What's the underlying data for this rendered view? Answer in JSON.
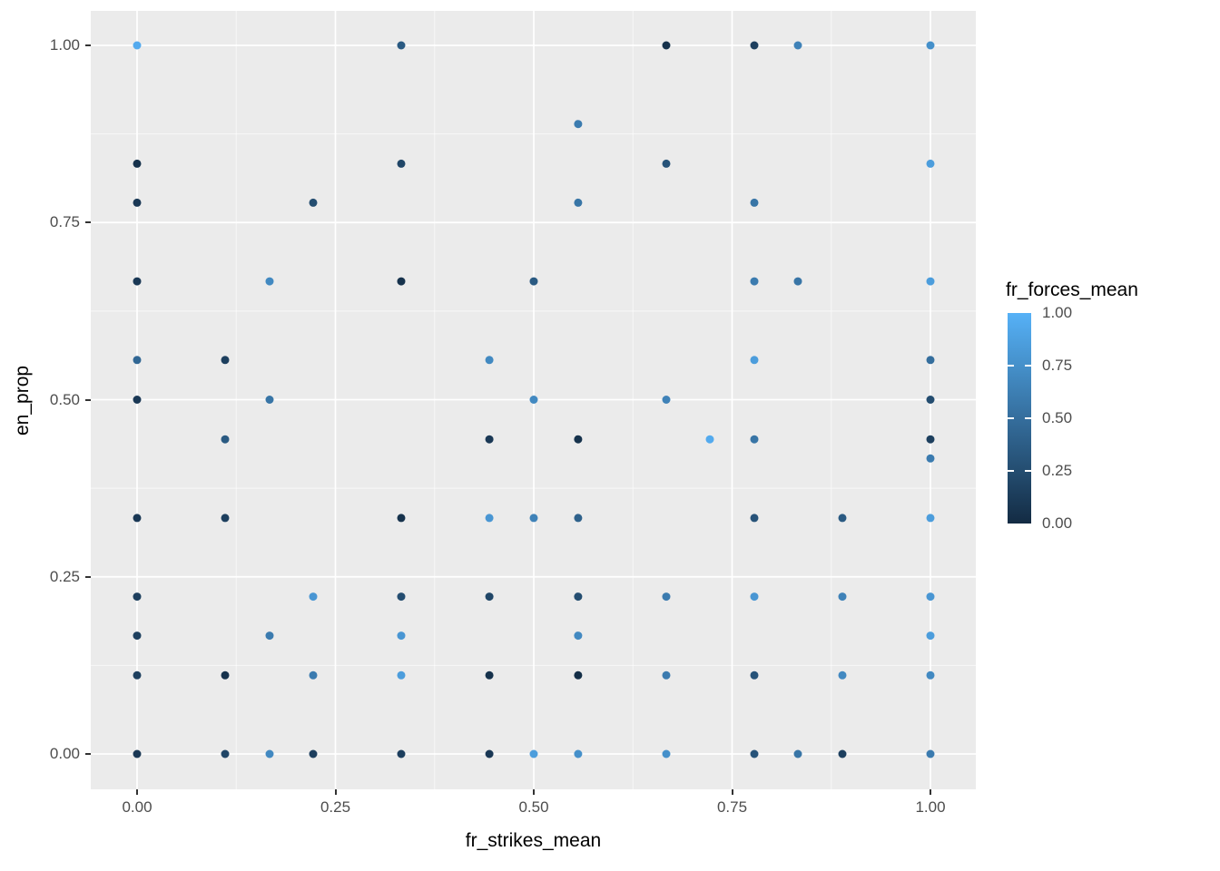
{
  "chart_data": {
    "type": "scatter",
    "title": "",
    "xlabel": "fr_strikes_mean",
    "ylabel": "en_prop",
    "xlim": [
      0,
      1
    ],
    "ylim": [
      0,
      1
    ],
    "grid": "on",
    "panel_bg": "#EBEBEB",
    "grid_color": "#FFFFFF",
    "tick_label_color": "#4D4D4D",
    "x_ticks": [
      "0.00",
      "0.25",
      "0.50",
      "0.75",
      "1.00"
    ],
    "x_tick_values": [
      0,
      0.25,
      0.5,
      0.75,
      1
    ],
    "y_ticks": [
      "1.00",
      "0.75",
      "0.50",
      "0.25",
      "0.00"
    ],
    "y_tick_values": [
      1,
      0.75,
      0.5,
      0.25,
      0
    ],
    "minor_tick_values": [
      0.125,
      0.375,
      0.625,
      0.875
    ],
    "legend": {
      "title": "fr_forces_mean",
      "position": "right",
      "type": "colorbar",
      "labels": [
        "1.00",
        "0.75",
        "0.50",
        "0.25",
        "0.00"
      ],
      "label_values": [
        1,
        0.75,
        0.5,
        0.25,
        0
      ],
      "color_low": "#132B43",
      "color_high": "#56B1F7"
    },
    "point_radius": 4.5,
    "points_format": [
      "fr_strikes_mean",
      "en_prop",
      "fr_forces_mean"
    ],
    "points": [
      [
        0,
        1,
        0.95
      ],
      [
        0.333,
        1,
        0.35
      ],
      [
        0.667,
        1,
        0.05
      ],
      [
        0.778,
        1,
        0.15
      ],
      [
        0.833,
        1,
        0.65
      ],
      [
        1,
        1,
        0.75
      ],
      [
        0.556,
        0.889,
        0.6
      ],
      [
        0,
        0.833,
        0.05
      ],
      [
        0.333,
        0.833,
        0.2
      ],
      [
        0.667,
        0.833,
        0.3
      ],
      [
        1,
        0.833,
        0.85
      ],
      [
        0,
        0.778,
        0.1
      ],
      [
        0.222,
        0.778,
        0.25
      ],
      [
        0.556,
        0.778,
        0.55
      ],
      [
        0.778,
        0.778,
        0.55
      ],
      [
        0,
        0.667,
        0.1
      ],
      [
        0.167,
        0.667,
        0.7
      ],
      [
        0.333,
        0.667,
        0.05
      ],
      [
        0.5,
        0.667,
        0.35
      ],
      [
        0.778,
        0.667,
        0.6
      ],
      [
        0.833,
        0.667,
        0.55
      ],
      [
        1,
        0.667,
        0.85
      ],
      [
        0,
        0.556,
        0.45
      ],
      [
        0.111,
        0.556,
        0.15
      ],
      [
        0.444,
        0.556,
        0.7
      ],
      [
        0.778,
        0.556,
        0.85
      ],
      [
        1,
        0.556,
        0.5
      ],
      [
        0,
        0.5,
        0.1
      ],
      [
        0.167,
        0.5,
        0.55
      ],
      [
        0.5,
        0.5,
        0.7
      ],
      [
        0.667,
        0.5,
        0.65
      ],
      [
        1,
        0.5,
        0.25
      ],
      [
        0.111,
        0.444,
        0.35
      ],
      [
        0.444,
        0.444,
        0.1
      ],
      [
        0.556,
        0.444,
        0.05
      ],
      [
        0.722,
        0.444,
        0.95
      ],
      [
        0.778,
        0.444,
        0.55
      ],
      [
        1,
        0.444,
        0.15
      ],
      [
        1,
        0.417,
        0.6
      ],
      [
        0,
        0.333,
        0.1
      ],
      [
        0.111,
        0.333,
        0.15
      ],
      [
        0.333,
        0.333,
        0.05
      ],
      [
        0.444,
        0.333,
        0.8
      ],
      [
        0.5,
        0.333,
        0.65
      ],
      [
        0.556,
        0.333,
        0.4
      ],
      [
        0.778,
        0.333,
        0.3
      ],
      [
        0.889,
        0.333,
        0.35
      ],
      [
        1,
        0.333,
        0.85
      ],
      [
        0,
        0.222,
        0.15
      ],
      [
        0.222,
        0.222,
        0.8
      ],
      [
        0.333,
        0.222,
        0.25
      ],
      [
        0.444,
        0.222,
        0.2
      ],
      [
        0.556,
        0.222,
        0.25
      ],
      [
        0.667,
        0.222,
        0.6
      ],
      [
        0.778,
        0.222,
        0.8
      ],
      [
        0.889,
        0.222,
        0.65
      ],
      [
        1,
        0.222,
        0.8
      ],
      [
        0,
        0.167,
        0.15
      ],
      [
        0.167,
        0.167,
        0.6
      ],
      [
        0.333,
        0.167,
        0.8
      ],
      [
        0.556,
        0.167,
        0.7
      ],
      [
        1,
        0.167,
        0.85
      ],
      [
        0,
        0.111,
        0.15
      ],
      [
        0.111,
        0.111,
        0.05
      ],
      [
        0.222,
        0.111,
        0.6
      ],
      [
        0.333,
        0.111,
        0.85
      ],
      [
        0.444,
        0.111,
        0.05
      ],
      [
        0.556,
        0.111,
        0.02
      ],
      [
        0.667,
        0.111,
        0.6
      ],
      [
        0.778,
        0.111,
        0.3
      ],
      [
        0.889,
        0.111,
        0.7
      ],
      [
        1,
        0.111,
        0.7
      ],
      [
        0,
        0,
        0.1
      ],
      [
        0.111,
        0,
        0.2
      ],
      [
        0.167,
        0,
        0.7
      ],
      [
        0.222,
        0,
        0.15
      ],
      [
        0.333,
        0,
        0.15
      ],
      [
        0.444,
        0,
        0.1
      ],
      [
        0.5,
        0,
        0.85
      ],
      [
        0.556,
        0,
        0.75
      ],
      [
        0.667,
        0,
        0.75
      ],
      [
        0.778,
        0,
        0.3
      ],
      [
        0.833,
        0,
        0.55
      ],
      [
        0.889,
        0,
        0.15
      ],
      [
        1,
        0,
        0.6
      ]
    ]
  }
}
